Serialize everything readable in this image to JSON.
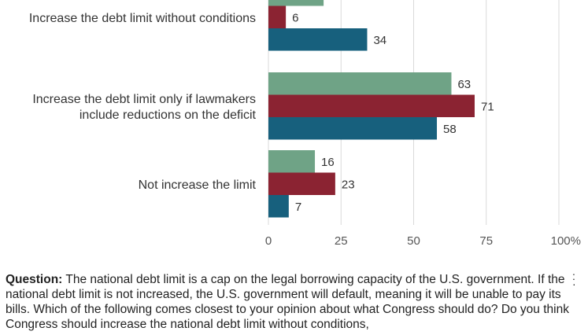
{
  "chart_data": {
    "type": "bar",
    "orientation": "horizontal",
    "categories": [
      [
        "Increase the debt limit without conditions"
      ],
      [
        "Increase the debt limit only if lawmakers",
        "include reductions on the deficit"
      ],
      [
        "Not increase the limit"
      ]
    ],
    "series": [
      {
        "color": "#6fa386",
        "values": [
          19,
          63,
          16
        ]
      },
      {
        "color": "#8b2332",
        "values": [
          6,
          71,
          23
        ]
      },
      {
        "color": "#17607d",
        "values": [
          34,
          58,
          7
        ]
      }
    ],
    "xlim": [
      0,
      100
    ],
    "xticks": [
      "0",
      "25",
      "50",
      "75",
      "100%"
    ],
    "grid": true
  },
  "question": {
    "label": "Question:",
    "text": "The national debt limit is a cap on the legal borrowing capacity of the U.S. government. If the national debt limit is not increased, the U.S. government will default, meaning it will be unable to pay its bills. Which of the following comes closest to your opinion about what Congress should do? Do you think Congress should increase the national debt limit without conditions,"
  }
}
